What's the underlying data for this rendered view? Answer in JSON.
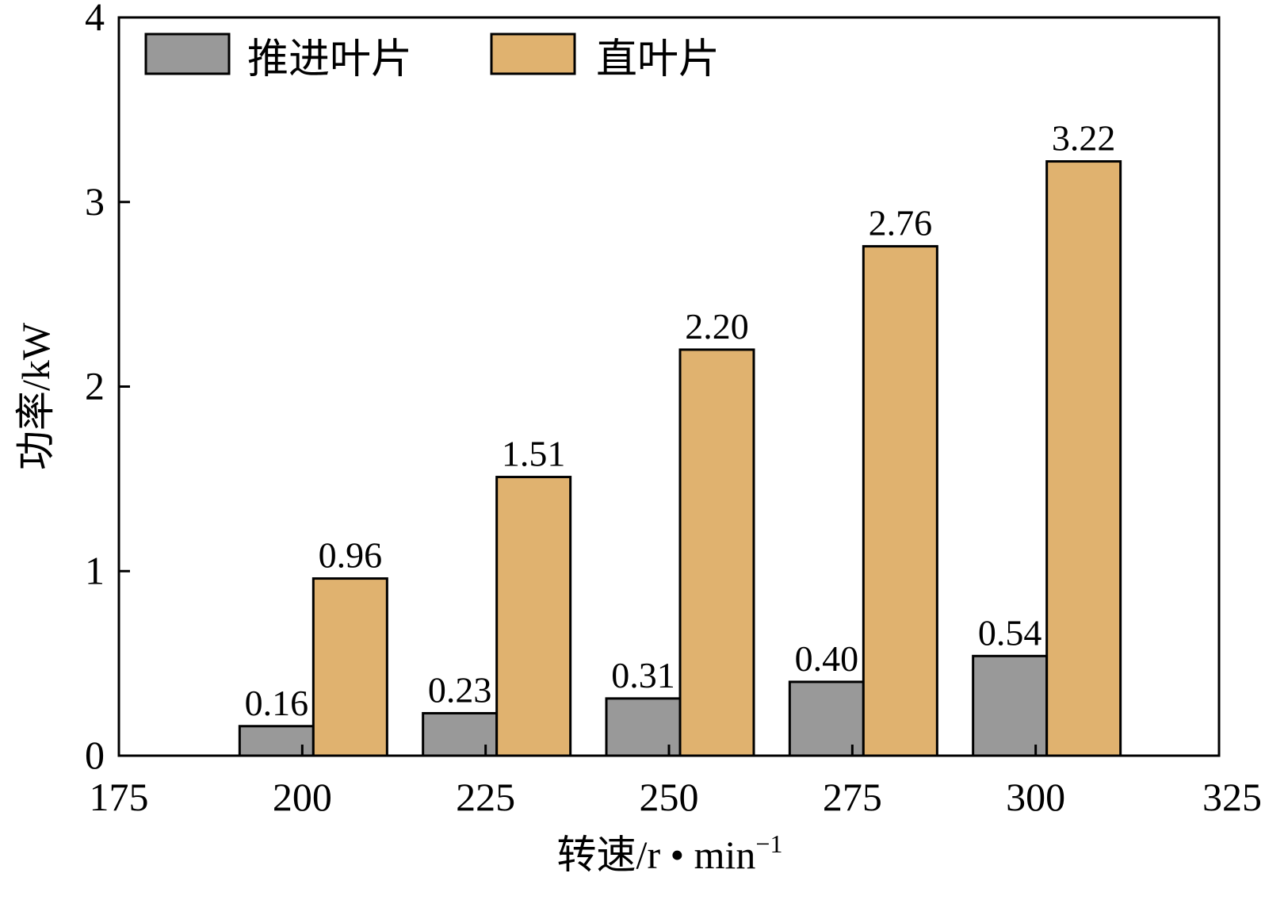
{
  "chart_data": {
    "type": "bar",
    "xlabel": "转速/r • min",
    "xlabel_sup": "−1",
    "ylabel": "功率/kW",
    "xlim": [
      175,
      325
    ],
    "ylim": [
      0,
      4
    ],
    "xticks": [
      "175",
      "200",
      "225",
      "250",
      "275",
      "300",
      "325"
    ],
    "yticks": [
      "0",
      "1",
      "2",
      "3",
      "4"
    ],
    "categories": [
      200,
      225,
      250,
      275,
      300
    ],
    "series": [
      {
        "name": "推进叶片",
        "color": "#999999",
        "values": [
          0.16,
          0.23,
          0.31,
          0.4,
          0.54
        ],
        "labels": [
          "0.16",
          "0.23",
          "0.31",
          "0.40",
          "0.54"
        ]
      },
      {
        "name": "直叶片",
        "color": "#e0b26f",
        "values": [
          0.96,
          1.51,
          2.2,
          2.76,
          3.22
        ],
        "labels": [
          "0.96",
          "1.51",
          "2.20",
          "2.76",
          "3.22"
        ]
      }
    ],
    "legend_position": "top-left",
    "grid": false
  }
}
